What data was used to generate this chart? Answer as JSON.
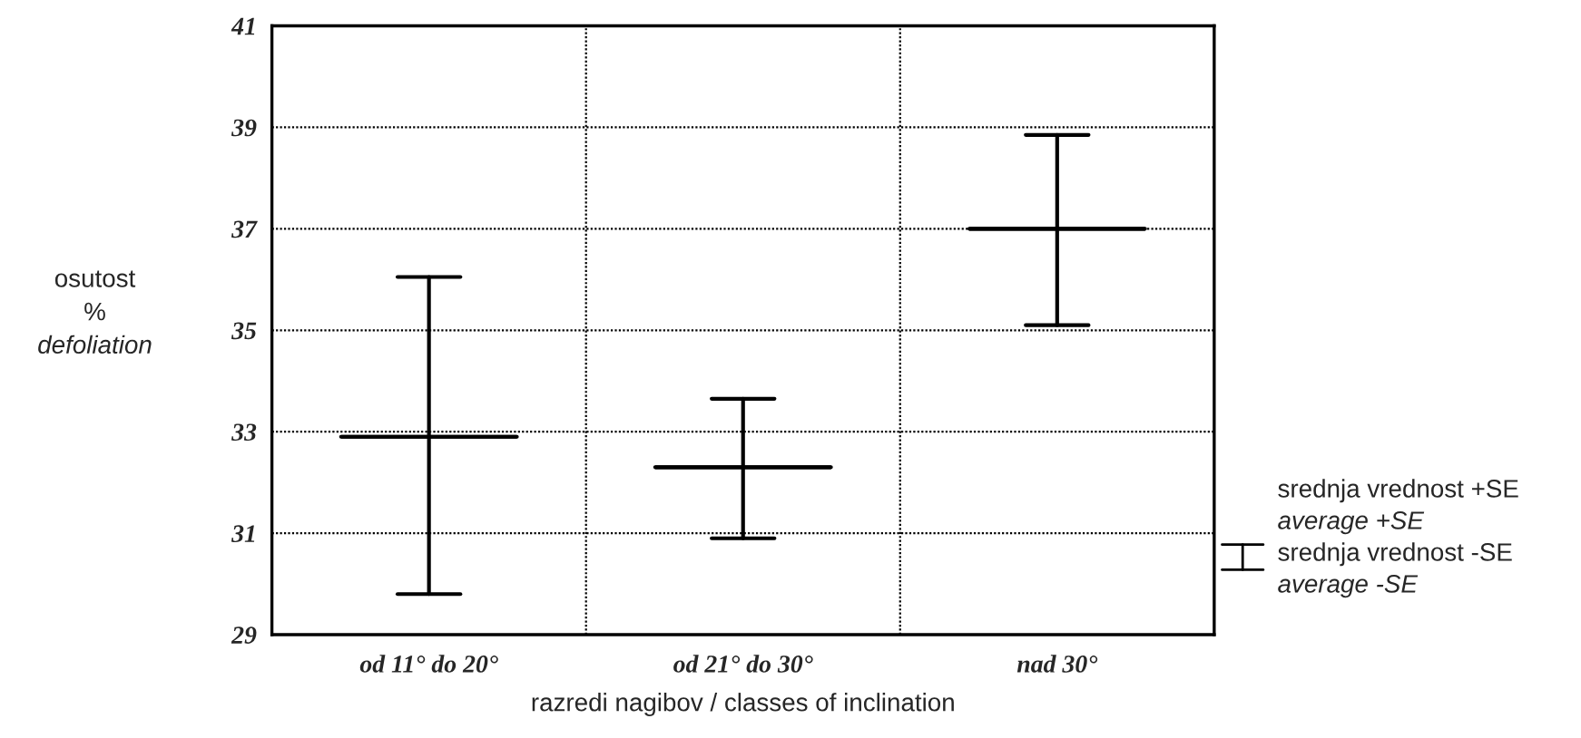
{
  "chart_data": {
    "type": "box",
    "xlabel": "razredi nagibov / classes of inclination",
    "ylabel": "osutost\n%\ndefoliation",
    "categories": [
      "od 11° do 20°",
      "od 21° do 30°",
      "nad 30°"
    ],
    "boxes": [
      {
        "low": 29.8,
        "q1": 32.9,
        "median": 32.9,
        "q3": 32.9,
        "high": 36.05
      },
      {
        "low": 30.9,
        "q1": 32.3,
        "median": 32.3,
        "q3": 32.3,
        "high": 33.65
      },
      {
        "low": 35.1,
        "q1": 37.0,
        "median": 37.0,
        "q3": 37.0,
        "high": 38.85
      }
    ],
    "color": "#000000",
    "ylim": [
      29,
      41
    ],
    "yticks": [
      29,
      31,
      33,
      35,
      37,
      39,
      41
    ],
    "grid": true,
    "annotations": [
      "srednja vrednost +SE",
      "average +SE",
      "srednja vrednost -SE",
      "average -SE"
    ]
  }
}
